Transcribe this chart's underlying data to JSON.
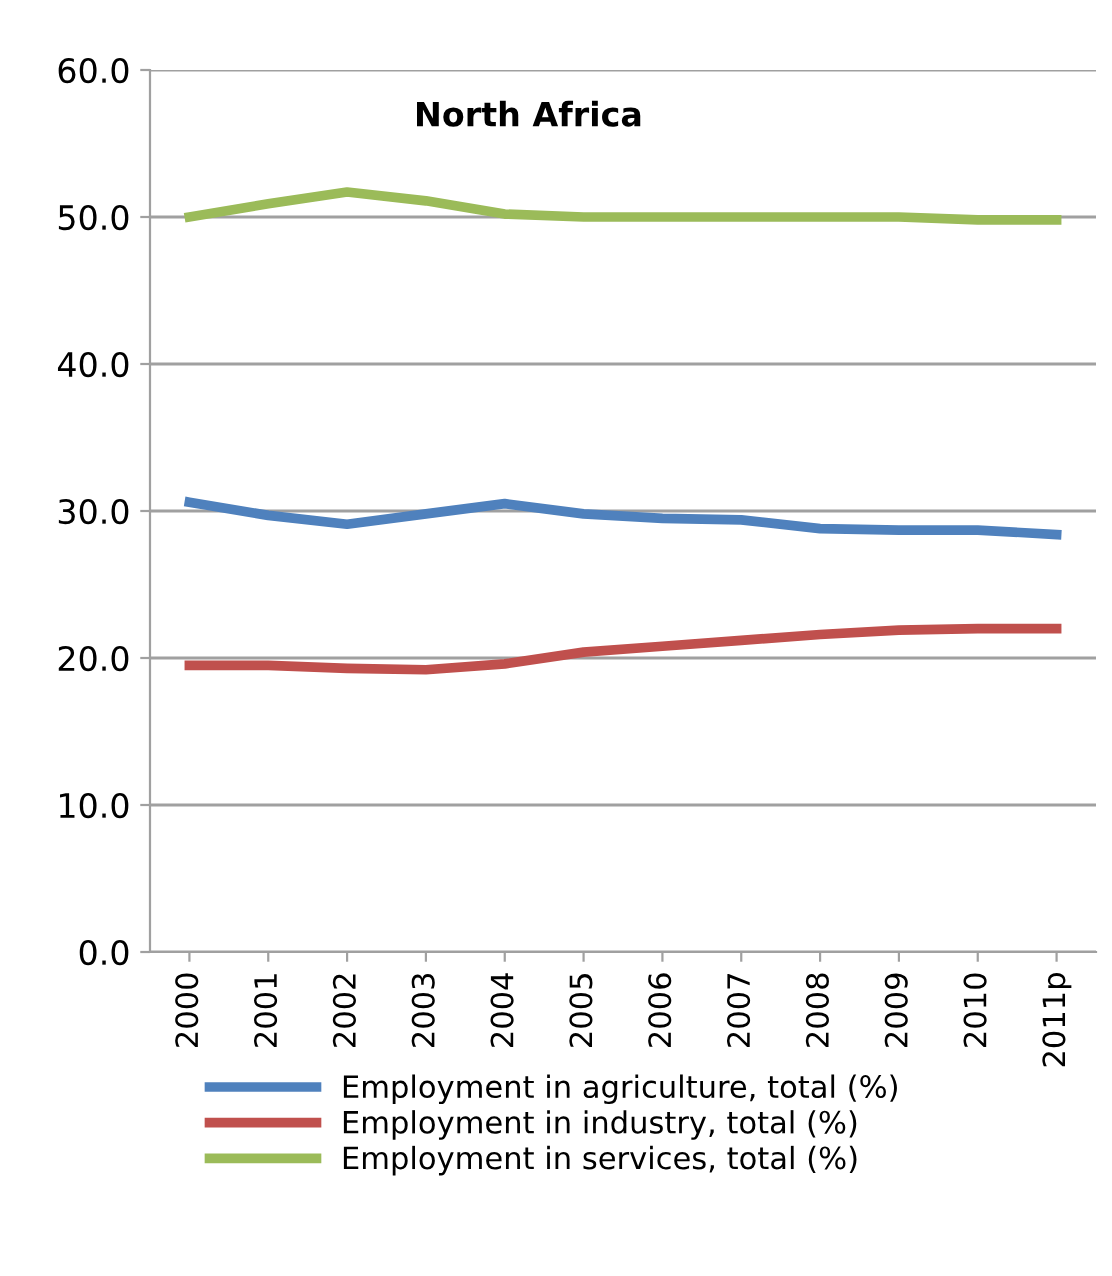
{
  "chart_data": {
    "type": "line",
    "title": "North Africa",
    "categories": [
      "2000",
      "2001",
      "2002",
      "2003",
      "2004",
      "2005",
      "2006",
      "2007",
      "2008",
      "2009",
      "2010",
      "2011p"
    ],
    "series": [
      {
        "name": "Employment in agriculture, total (%)",
        "color": "#4f81bd",
        "values": [
          30.6,
          29.7,
          29.1,
          29.8,
          30.5,
          29.8,
          29.5,
          29.4,
          28.8,
          28.7,
          28.7,
          28.4
        ]
      },
      {
        "name": "Employment in industry, total (%)",
        "color": "#c0504d",
        "values": [
          19.5,
          19.5,
          19.3,
          19.2,
          19.6,
          20.4,
          20.8,
          21.2,
          21.6,
          21.9,
          22.0,
          22.0
        ]
      },
      {
        "name": "Employment in services, total (%)",
        "color": "#9bbb59",
        "values": [
          50.0,
          50.9,
          51.7,
          51.1,
          50.2,
          50.0,
          50.0,
          50.0,
          50.0,
          50.0,
          49.8,
          49.8
        ]
      }
    ],
    "ylim": [
      0,
      60
    ],
    "yticks": [
      {
        "value": 0,
        "label": "0.0"
      },
      {
        "value": 10,
        "label": "10.0"
      },
      {
        "value": 20,
        "label": "20.0"
      },
      {
        "value": 30,
        "label": "30.0"
      },
      {
        "value": 40,
        "label": "40.0"
      },
      {
        "value": 50,
        "label": "50.0"
      },
      {
        "value": 60,
        "label": "60.0"
      }
    ],
    "grid": "y",
    "legend": "bottom",
    "marker": "none",
    "line_style": "solid"
  }
}
